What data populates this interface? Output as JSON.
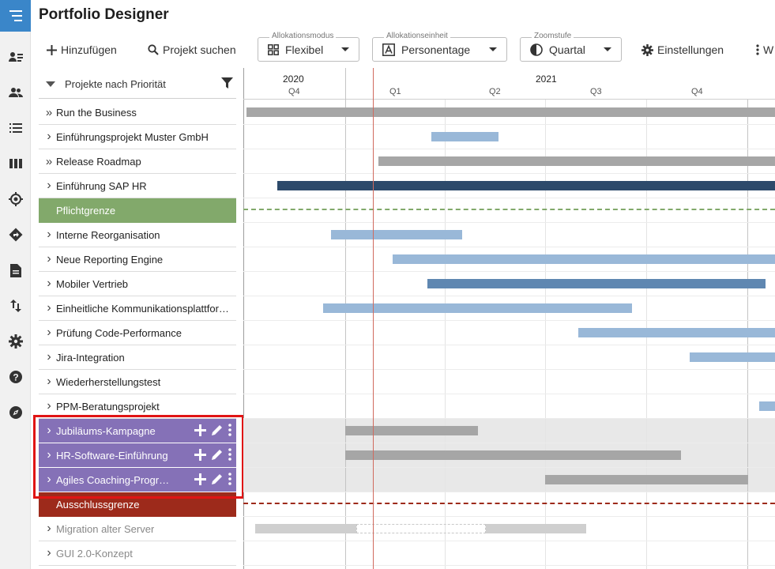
{
  "app": {
    "title": "Portfolio Designer"
  },
  "toolbar": {
    "add_label": "Hinzufügen",
    "search_label": "Projekt suchen",
    "alloc_mode": {
      "label": "Allokationsmodus",
      "value": "Flexibel"
    },
    "alloc_unit": {
      "label": "Allokationseinheit",
      "value": "Personentage"
    },
    "zoom": {
      "label": "Zoomstufe",
      "value": "Quartal"
    },
    "settings_label": "Einstellungen",
    "more_label": "W"
  },
  "list": {
    "header": "Projekte nach Priorität",
    "rows": [
      {
        "name": "Run the Business",
        "kind": "project",
        "chevron": "»"
      },
      {
        "name": "Einführungsprojekt Muster GmbH",
        "kind": "project",
        "chevron": "›"
      },
      {
        "name": "Release Roadmap",
        "kind": "project",
        "chevron": "»"
      },
      {
        "name": "Einführung SAP HR",
        "kind": "project",
        "chevron": "›"
      },
      {
        "name": "Pflichtgrenze",
        "kind": "limit-green"
      },
      {
        "name": "Interne Reorganisation",
        "kind": "project",
        "chevron": "›"
      },
      {
        "name": "Neue Reporting Engine",
        "kind": "project",
        "chevron": "›"
      },
      {
        "name": "Mobiler Vertrieb",
        "kind": "project",
        "chevron": "›"
      },
      {
        "name": "Einheitliche Kommunikationsplattfor…",
        "kind": "project",
        "chevron": "›"
      },
      {
        "name": "Prüfung Code-Performance",
        "kind": "project",
        "chevron": "›"
      },
      {
        "name": "Jira-Integration",
        "kind": "project",
        "chevron": "›"
      },
      {
        "name": "Wiederherstellungstest",
        "kind": "project",
        "chevron": "›"
      },
      {
        "name": "PPM-Beratungsprojekt",
        "kind": "project",
        "chevron": "›"
      },
      {
        "name": "Jubiläums-Kampagne",
        "kind": "purple",
        "chevron": "›"
      },
      {
        "name": "HR-Software-Einführung",
        "kind": "purple",
        "chevron": "›"
      },
      {
        "name": "Agiles Coaching-Progra…",
        "kind": "purple",
        "chevron": "›"
      },
      {
        "name": "Ausschlussgrenze",
        "kind": "limit-red"
      },
      {
        "name": "Migration alter Server",
        "kind": "muted",
        "chevron": "›"
      },
      {
        "name": "GUI 2.0-Konzept",
        "kind": "muted",
        "chevron": "›"
      }
    ]
  },
  "timeline": {
    "years": [
      "2020",
      "2021"
    ],
    "quarters": [
      "Q4",
      "Q1",
      "Q2",
      "Q3",
      "Q4"
    ]
  },
  "colors": {
    "brand": "#3a86c9",
    "limit_green": "#82a96b",
    "limit_red": "#9d2a1b",
    "purple": "#8571b7",
    "bar_gray": "#a6a6a6",
    "bar_light_blue": "#99b8d8",
    "bar_mid_blue": "#5f87b1",
    "bar_dark_blue": "#2d4a6b",
    "highlight": "#e01414"
  },
  "icons": [
    "menu-icon",
    "person-list-icon",
    "people-icon",
    "list-icon",
    "columns-icon",
    "target-icon",
    "directions-icon",
    "document-icon",
    "swap-icon",
    "gear-icon",
    "help-icon",
    "compass-icon"
  ]
}
